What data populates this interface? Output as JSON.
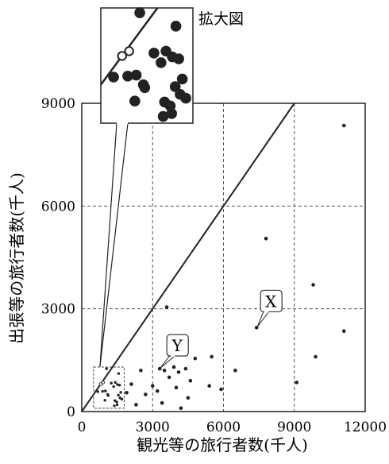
{
  "chart_data": {
    "type": "scatter",
    "xlabel": "観光等の旅行者数(千人)",
    "ylabel": "出張等の旅行者数(千人)",
    "xlim": [
      0,
      12000
    ],
    "ylim": [
      0,
      9000
    ],
    "xticks": [
      0,
      3000,
      6000,
      9000,
      12000
    ],
    "yticks": [
      0,
      3000,
      6000,
      9000
    ],
    "tick_labels_x": [
      "0",
      "3000",
      "6000",
      "9000",
      "12000"
    ],
    "tick_labels_y": [
      "0",
      "3000",
      "6000",
      "9000"
    ],
    "grid": "dashed",
    "reference_line": {
      "from": [
        0,
        0
      ],
      "to": [
        9000,
        9000
      ]
    },
    "inset_label": "拡大図",
    "annotations": [
      {
        "label": "X",
        "x": 7400,
        "y": 2450
      },
      {
        "label": "Y",
        "x": 3300,
        "y": 1250
      }
    ],
    "points": [
      {
        "x": 11100,
        "y": 8350
      },
      {
        "x": 7800,
        "y": 5050
      },
      {
        "x": 9800,
        "y": 3700
      },
      {
        "x": 11100,
        "y": 2350
      },
      {
        "x": 9900,
        "y": 1600
      },
      {
        "x": 9100,
        "y": 850
      },
      {
        "x": 6500,
        "y": 1200
      },
      {
        "x": 5900,
        "y": 650
      },
      {
        "x": 5400,
        "y": 750
      },
      {
        "x": 5500,
        "y": 1600
      },
      {
        "x": 4800,
        "y": 1550
      },
      {
        "x": 4600,
        "y": 900
      },
      {
        "x": 4400,
        "y": 1250
      },
      {
        "x": 4100,
        "y": 1150
      },
      {
        "x": 3900,
        "y": 1300
      },
      {
        "x": 3700,
        "y": 1000
      },
      {
        "x": 3500,
        "y": 1200
      },
      {
        "x": 3300,
        "y": 1250
      },
      {
        "x": 3200,
        "y": 600
      },
      {
        "x": 3400,
        "y": 250
      },
      {
        "x": 3000,
        "y": 750
      },
      {
        "x": 2700,
        "y": 500
      },
      {
        "x": 2500,
        "y": 1200
      },
      {
        "x": 2300,
        "y": 200
      },
      {
        "x": 2100,
        "y": 800
      },
      {
        "x": 1900,
        "y": 550
      },
      {
        "x": 4200,
        "y": 100
      },
      {
        "x": 4000,
        "y": 700
      },
      {
        "x": 4500,
        "y": 400
      },
      {
        "x": 3600,
        "y": 3050
      },
      {
        "x": 7400,
        "y": 2450
      }
    ],
    "zoom_region": {
      "xlim": [
        500,
        1800
      ],
      "ylim": [
        100,
        1300
      ]
    },
    "zoom_points": [
      {
        "x": 1050,
        "y": 1250
      },
      {
        "x": 1560,
        "y": 1110
      },
      {
        "x": 800,
        "y": 800,
        "open": true
      },
      {
        "x": 900,
        "y": 850,
        "open": true
      },
      {
        "x": 680,
        "y": 580
      },
      {
        "x": 880,
        "y": 590
      },
      {
        "x": 1000,
        "y": 600
      },
      {
        "x": 1100,
        "y": 500
      },
      {
        "x": 1250,
        "y": 830
      },
      {
        "x": 1350,
        "y": 730
      },
      {
        "x": 1420,
        "y": 850
      },
      {
        "x": 1510,
        "y": 790
      },
      {
        "x": 1600,
        "y": 770
      },
      {
        "x": 1650,
        "y": 560
      },
      {
        "x": 980,
        "y": 330
      },
      {
        "x": 1120,
        "y": 470
      },
      {
        "x": 1400,
        "y": 320
      },
      {
        "x": 1480,
        "y": 280
      },
      {
        "x": 1550,
        "y": 480
      },
      {
        "x": 1620,
        "y": 400
      },
      {
        "x": 1700,
        "y": 360
      },
      {
        "x": 1500,
        "y": 200
      },
      {
        "x": 1380,
        "y": 170
      }
    ]
  }
}
